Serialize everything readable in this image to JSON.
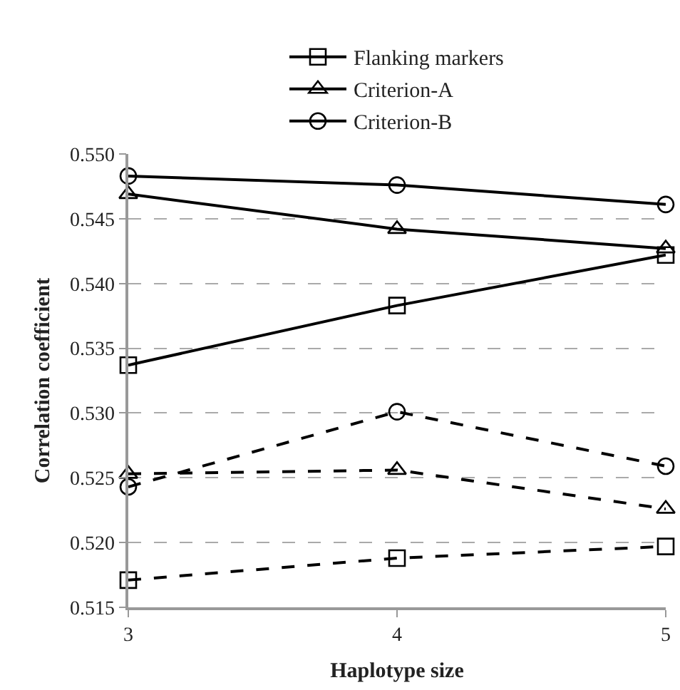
{
  "chart_data": {
    "type": "line",
    "xlabel": "Haplotype size",
    "ylabel": "Correlation coefficient",
    "x": [
      3,
      4,
      5
    ],
    "xlim": [
      3,
      5
    ],
    "xticks": [
      3,
      4,
      5
    ],
    "ylim": [
      0.515,
      0.55
    ],
    "yticks": [
      0.515,
      {
        "value": 0.52,
        "label": "0.520"
      },
      0.525,
      {
        "value": 0.53,
        "label": "0.530"
      },
      0.535,
      {
        "value": 0.54,
        "label": "0.540"
      },
      0.545,
      {
        "value": 0.55,
        "label": "0.550"
      }
    ],
    "grid": "y",
    "legend": "top",
    "series": [
      {
        "name": "Flanking markers",
        "color": "#000000",
        "marker": "square",
        "line_style": "solid",
        "values": [
          0.5337,
          0.5383,
          0.5422
        ]
      },
      {
        "name": "Criterion-A",
        "color": "#000000",
        "marker": "triangle",
        "line_style": "solid",
        "values": [
          0.5469,
          0.5442,
          0.5427
        ]
      },
      {
        "name": "Criterion-B",
        "color": "#000000",
        "marker": "circle",
        "line_style": "solid",
        "values": [
          0.5483,
          0.5476,
          0.5461
        ]
      },
      {
        "color": "#000000",
        "marker": "square",
        "line_style": "dashed",
        "values": [
          0.5171,
          0.5188,
          0.5197
        ]
      },
      {
        "color": "#000000",
        "marker": "triangle",
        "line_style": "dashed",
        "values": [
          0.5253,
          0.5256,
          0.5226
        ]
      },
      {
        "color": "#000000",
        "marker": "circle",
        "line_style": "dashed",
        "values": [
          0.5243,
          0.5301,
          0.5259
        ]
      }
    ]
  }
}
